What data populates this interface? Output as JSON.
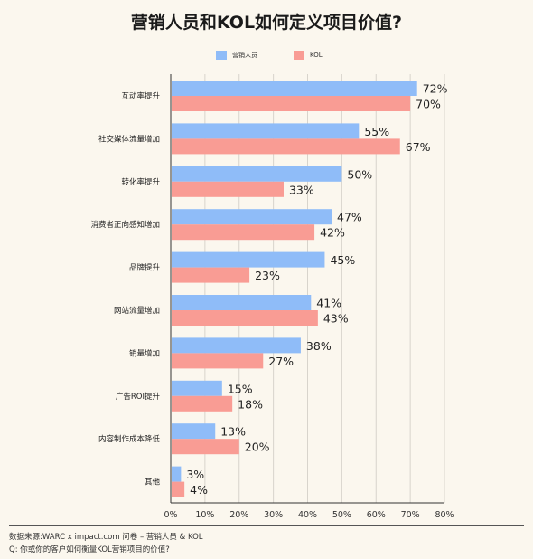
{
  "title": "营销人员和KOL如何定义项目价值?",
  "colors": {
    "marketer": "#8fbcf8",
    "kol": "#f99c94",
    "background": "#fbf7ee",
    "grid": "#d8d4cc",
    "axis": "#333333"
  },
  "footer": {
    "source": "数据来源:WARC x impact.com 问卷 – 营销人员 & KOL",
    "question": "Q: 你或你的客户如何衡量KOL营销项目的价值?"
  },
  "chart_data": {
    "type": "bar",
    "orientation": "horizontal",
    "title": "营销人员和KOL如何定义项目价值?",
    "categories": [
      "互动率提升",
      "社交媒体流量增加",
      "转化率提升",
      "消费者正向感知增加",
      "品牌提升",
      "网站流量增加",
      "销量增加",
      "广告ROI提升",
      "内容制作成本降低",
      "其他"
    ],
    "series": [
      {
        "name": "营销人员",
        "values": [
          72,
          55,
          50,
          47,
          45,
          41,
          38,
          15,
          13,
          3
        ],
        "labels": [
          "72%",
          "55%",
          "50%",
          "47%",
          "45%",
          "41%",
          "38%",
          "15%",
          "13%",
          "3%"
        ]
      },
      {
        "name": "KOL",
        "values": [
          70,
          67,
          33,
          42,
          23,
          43,
          27,
          18,
          20,
          4
        ],
        "labels": [
          "70%",
          "67%",
          "33%",
          "42%",
          "23%",
          "43%",
          "27%",
          "18%",
          "20%",
          "4%"
        ]
      }
    ],
    "xticks": [
      "0%",
      "10%",
      "20%",
      "30%",
      "40%",
      "50%",
      "60%",
      "70%",
      "80%"
    ],
    "xlim": [
      0,
      80
    ],
    "xlabel": "",
    "ylabel": "",
    "grid": "vertical",
    "legend": "top-center"
  }
}
